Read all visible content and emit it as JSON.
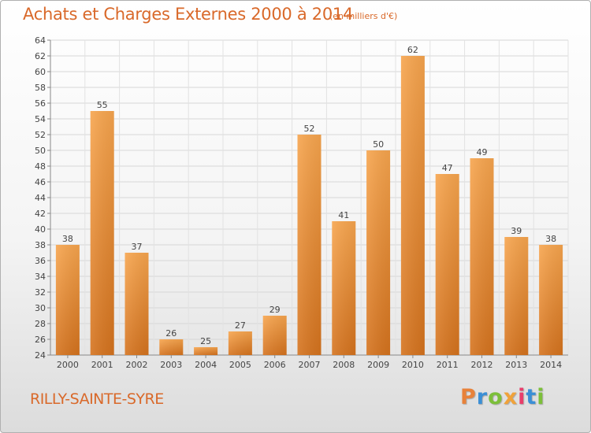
{
  "header": {
    "title": "Achats et Charges Externes 2000 à 2014",
    "subtitle": "(en milliers d'€)"
  },
  "footer": {
    "place": "RILLY-SAINTE-SYRE",
    "logo": "Proxiti"
  },
  "colors": {
    "accent": "#d9692a",
    "bar_light": "#f7a54e",
    "bar_dark": "#d5731e",
    "logo_letters": [
      "#e8823a",
      "#3b8fd6",
      "#7cbf3a",
      "#f0a23a",
      "#e83e6b",
      "#3b8fd6",
      "#7cbf3a"
    ]
  },
  "chart_data": {
    "type": "bar",
    "categories": [
      "2000",
      "2001",
      "2002",
      "2003",
      "2004",
      "2005",
      "2006",
      "2007",
      "2008",
      "2009",
      "2010",
      "2011",
      "2012",
      "2013",
      "2014"
    ],
    "values": [
      38,
      55,
      37,
      26,
      25,
      27,
      29,
      52,
      41,
      50,
      62,
      47,
      49,
      39,
      38
    ],
    "ylim": [
      24,
      64
    ],
    "yticks": [
      24,
      26,
      28,
      30,
      32,
      34,
      36,
      38,
      40,
      42,
      44,
      46,
      48,
      50,
      52,
      54,
      56,
      58,
      60,
      62,
      64
    ],
    "grid": true,
    "data_labels": true,
    "xlabel": "",
    "ylabel": ""
  }
}
